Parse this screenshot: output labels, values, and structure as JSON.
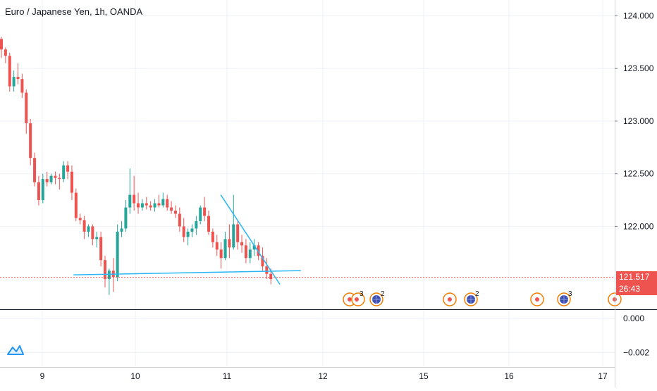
{
  "chart_data": {
    "type": "candlestick",
    "title": "Euro / Japanese Yen, 1h, OANDA",
    "price_axis": {
      "ticks": [
        "124.000",
        "123.500",
        "123.000",
        "122.500",
        "122.000"
      ],
      "tick_values": [
        124.0,
        123.5,
        123.0,
        122.5,
        122.0
      ],
      "range": [
        121.22,
        124.15
      ],
      "last_price": "121.517",
      "countdown": "26:43"
    },
    "indicator_axis": {
      "ticks": [
        "0.000",
        "−0.002"
      ],
      "tick_values": [
        0.0,
        -0.002
      ],
      "range": [
        -0.0028,
        0.0005
      ]
    },
    "time_axis": {
      "ticks": [
        "9",
        "10",
        "11",
        "12",
        "15",
        "16",
        "17"
      ]
    },
    "candles_approx": [
      [
        123.78,
        123.8,
        123.6,
        123.68
      ],
      [
        123.68,
        123.7,
        123.55,
        123.62
      ],
      [
        123.62,
        123.65,
        123.28,
        123.33
      ],
      [
        123.33,
        123.48,
        123.28,
        123.42
      ],
      [
        123.42,
        123.55,
        123.35,
        123.4
      ],
      [
        123.4,
        123.45,
        123.22,
        123.27
      ],
      [
        123.27,
        123.3,
        122.88,
        122.98
      ],
      [
        122.98,
        123.02,
        122.58,
        122.65
      ],
      [
        122.65,
        122.7,
        122.38,
        122.42
      ],
      [
        122.42,
        122.48,
        122.2,
        122.25
      ],
      [
        122.25,
        122.5,
        122.22,
        122.45
      ],
      [
        122.45,
        122.52,
        122.38,
        122.42
      ],
      [
        122.42,
        122.5,
        122.4,
        122.48
      ],
      [
        122.48,
        122.52,
        122.4,
        122.46
      ],
      [
        122.46,
        122.5,
        122.35,
        122.45
      ],
      [
        122.45,
        122.62,
        122.42,
        122.58
      ],
      [
        122.58,
        122.62,
        122.45,
        122.52
      ],
      [
        122.52,
        122.58,
        122.25,
        122.32
      ],
      [
        122.32,
        122.36,
        122.05,
        122.08
      ],
      [
        122.08,
        122.12,
        122.02,
        122.06
      ],
      [
        122.06,
        122.1,
        121.88,
        121.95
      ],
      [
        121.95,
        122.02,
        121.9,
        122.0
      ],
      [
        122.0,
        122.02,
        121.82,
        121.88
      ],
      [
        121.88,
        121.95,
        121.8,
        121.9
      ],
      [
        121.9,
        121.95,
        121.62,
        121.68
      ],
      [
        121.68,
        121.72,
        121.42,
        121.5
      ],
      [
        121.5,
        121.6,
        121.35,
        121.58
      ],
      [
        121.58,
        121.7,
        121.38,
        121.52
      ],
      [
        121.52,
        122.02,
        121.48,
        121.95
      ],
      [
        121.95,
        122.05,
        121.9,
        121.98
      ],
      [
        121.98,
        122.25,
        121.95,
        122.18
      ],
      [
        122.18,
        122.55,
        122.12,
        122.3
      ],
      [
        122.3,
        122.48,
        122.15,
        122.22
      ],
      [
        122.22,
        122.32,
        122.12,
        122.18
      ],
      [
        122.18,
        122.26,
        122.15,
        122.22
      ],
      [
        122.22,
        122.28,
        122.16,
        122.2
      ],
      [
        122.2,
        122.24,
        122.15,
        122.18
      ],
      [
        122.18,
        122.26,
        122.14,
        122.22
      ],
      [
        122.22,
        122.3,
        122.18,
        122.2
      ],
      [
        122.2,
        122.32,
        122.18,
        122.26
      ],
      [
        122.26,
        122.3,
        122.15,
        122.18
      ],
      [
        122.18,
        122.24,
        122.12,
        122.15
      ],
      [
        122.15,
        122.2,
        122.08,
        122.12
      ],
      [
        122.12,
        122.18,
        121.95,
        122.0
      ],
      [
        122.0,
        122.08,
        121.85,
        121.9
      ],
      [
        121.9,
        121.98,
        121.82,
        121.95
      ],
      [
        121.95,
        122.02,
        121.9,
        121.98
      ],
      [
        121.98,
        122.1,
        121.92,
        122.05
      ],
      [
        122.05,
        122.2,
        122.02,
        122.18
      ],
      [
        122.18,
        122.28,
        122.05,
        122.1
      ],
      [
        122.1,
        122.15,
        121.92,
        121.95
      ],
      [
        121.95,
        121.98,
        121.8,
        121.85
      ],
      [
        121.85,
        121.92,
        121.72,
        121.78
      ],
      [
        121.78,
        121.85,
        121.6,
        121.7
      ],
      [
        121.7,
        121.95,
        121.68,
        121.88
      ],
      [
        121.88,
        122.02,
        121.7,
        121.8
      ],
      [
        121.8,
        122.3,
        121.78,
        122.02
      ],
      [
        122.02,
        122.05,
        121.78,
        121.85
      ],
      [
        121.85,
        121.92,
        121.75,
        121.82
      ],
      [
        121.82,
        121.88,
        121.65,
        121.7
      ],
      [
        121.7,
        121.85,
        121.65,
        121.78
      ],
      [
        121.78,
        121.88,
        121.72,
        121.82
      ],
      [
        121.82,
        121.85,
        121.68,
        121.72
      ],
      [
        121.72,
        121.8,
        121.58,
        121.62
      ],
      [
        121.62,
        121.7,
        121.5,
        121.55
      ],
      [
        121.55,
        121.6,
        121.45,
        121.5
      ]
    ],
    "trendlines": [
      {
        "color": "#29b6f6",
        "from": {
          "x_frac": 0.112,
          "price": 121.54
        },
        "to": {
          "x_frac": 0.458,
          "price": 121.58
        }
      },
      {
        "color": "#29b6f6",
        "from": {
          "x_frac": 0.336,
          "price": 122.3
        },
        "to": {
          "x_frac": 0.426,
          "price": 121.45
        }
      }
    ],
    "events": [
      {
        "kind": "red-dot",
        "count": "3"
      },
      {
        "kind": "globe",
        "count": "2"
      },
      {
        "kind": "red-dot",
        "count": ""
      },
      {
        "kind": "globe",
        "count": "2"
      },
      {
        "kind": "red-dot",
        "count": ""
      },
      {
        "kind": "globe",
        "count": "3"
      },
      {
        "kind": "red-dot",
        "count": ""
      }
    ],
    "colors": {
      "up": "#26a69a",
      "down": "#ef5350",
      "grid": "#eef1f5",
      "trendline": "#29b6f6",
      "price_line": "#ef5350",
      "price_tag": "#ef5350",
      "event_ring": "#f57c00",
      "globe": "#3f51b5"
    },
    "grid": true
  }
}
